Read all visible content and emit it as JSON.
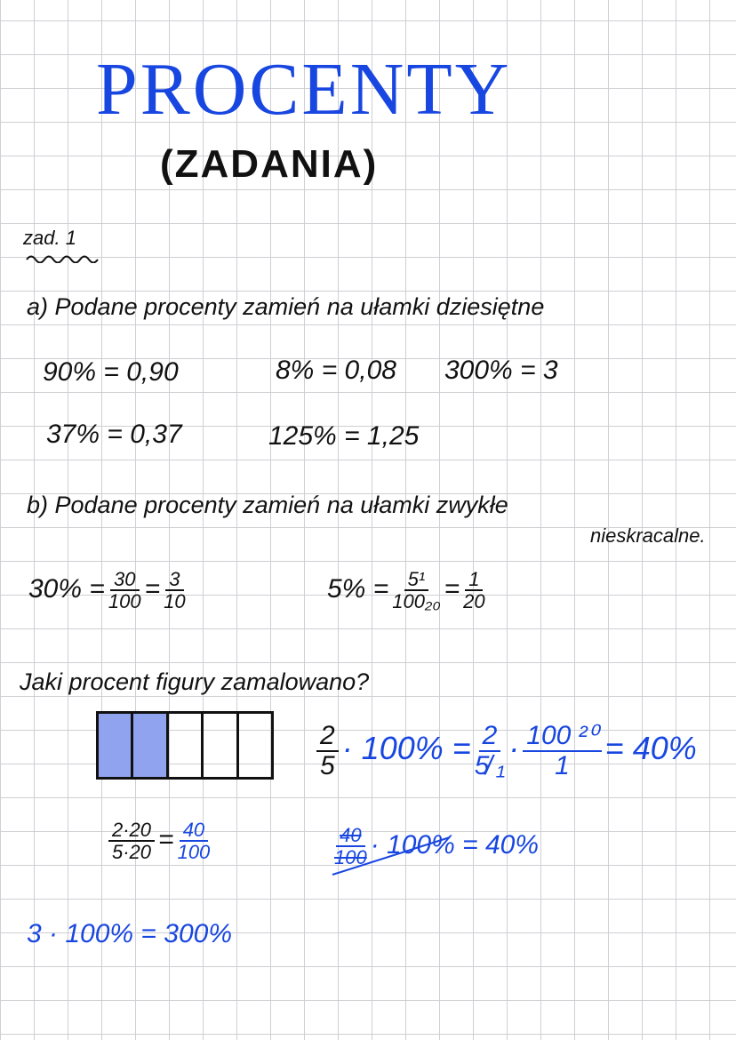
{
  "title": "PROCENTY",
  "subtitle": "(ZADANIA)",
  "task_label": "zad. 1",
  "part_a": {
    "instruction": "a) Podane procenty zamień na ułamki dziesiętne",
    "items": [
      "90% = 0,90",
      "8% = 0,08",
      "300% = 3",
      "37% = 0,37",
      "125% = 1,25"
    ]
  },
  "part_b": {
    "instruction": "b) Podane procenty zamień na ułamki zwykłe",
    "instruction_cont": "nieskracalne.",
    "ex1": {
      "lhs": "30% =",
      "n1": "30",
      "d1": "100",
      "eq": "=",
      "n2": "3",
      "d2": "10"
    },
    "ex2": {
      "lhs": "5% =",
      "n1": "5¹",
      "d1": "100₂₀",
      "eq": "=",
      "n2": "1",
      "d2": "20"
    }
  },
  "question": {
    "text": "Jaki procent figury zamalowano?",
    "figure": {
      "cells": 5,
      "shaded": 2,
      "shade_color": "#8fa3ef"
    },
    "calc1": {
      "n1": "2",
      "d1": "5",
      "mid": "· 100% =",
      "n2": "2",
      "d2": "5̸ ₁",
      "dot": "·",
      "n3": "100 ²⁰",
      "d3": "1",
      "result": "= 40%"
    },
    "calc2": {
      "n1": "2·20",
      "d1": "5·20",
      "eq": "=",
      "n2": "40",
      "d2": "100"
    },
    "calc3": {
      "n1": "40",
      "d1": "100",
      "rest": "· 100% = 40%"
    },
    "calc4": "3 · 100% = 300%"
  },
  "colors": {
    "ink": "#111111",
    "blue_ink": "#1846e0",
    "grid": "#cfcfd4"
  }
}
